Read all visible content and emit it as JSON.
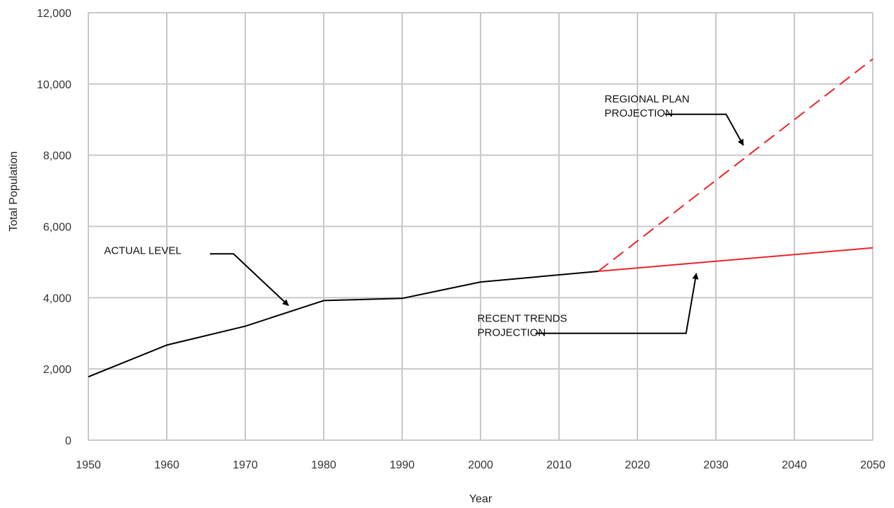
{
  "chart_data": {
    "type": "line",
    "title": "",
    "xlabel": "Year",
    "ylabel": "Total Population",
    "xlim": [
      1950,
      2050
    ],
    "ylim": [
      0,
      12000
    ],
    "x_ticks": [
      1950,
      1960,
      1970,
      1980,
      1990,
      2000,
      2010,
      2020,
      2030,
      2040,
      2050
    ],
    "x_tick_labels": [
      "1950",
      "1960",
      "1970",
      "1980",
      "1990",
      "2000",
      "2010",
      "2020",
      "2030",
      "2040",
      "2050"
    ],
    "y_ticks": [
      0,
      2000,
      4000,
      6000,
      8000,
      10000,
      12000
    ],
    "y_tick_labels": [
      "0",
      "2,000",
      "4,000",
      "6,000",
      "8,000",
      "10,000",
      "12,000"
    ],
    "grid": true,
    "series": [
      {
        "name": "ACTUAL LEVEL",
        "color": "#000000",
        "style": "solid",
        "points": [
          [
            1950,
            1780
          ],
          [
            1960,
            2670
          ],
          [
            1970,
            3200
          ],
          [
            1980,
            3920
          ],
          [
            1990,
            3980
          ],
          [
            2000,
            4440
          ],
          [
            2015,
            4740
          ]
        ]
      },
      {
        "name": "REGIONAL PLAN PROJECTION",
        "color": "#e8262a",
        "style": "dashed",
        "points": [
          [
            2015,
            4740
          ],
          [
            2050,
            10700
          ]
        ]
      },
      {
        "name": "RECENT TRENDS PROJECTION",
        "color": "#e8262a",
        "style": "solid",
        "points": [
          [
            2015,
            4740
          ],
          [
            2050,
            5400
          ]
        ]
      }
    ],
    "annotations": [
      {
        "id": "actual",
        "lines": [
          "ACTUAL LEVEL"
        ],
        "text_at": [
          1952,
          5230
        ],
        "path": [
          [
            1965.5,
            5230
          ],
          [
            1968.5,
            5230
          ],
          [
            1975.5,
            3780
          ]
        ]
      },
      {
        "id": "regional",
        "lines": [
          "REGIONAL PLAN",
          "PROJECTION"
        ],
        "text_at": [
          2015.8,
          9480
        ],
        "path": [
          [
            2023.5,
            9150
          ],
          [
            2031.3,
            9150
          ],
          [
            2033.5,
            8280
          ]
        ]
      },
      {
        "id": "trends",
        "lines": [
          "RECENT TRENDS",
          "PROJECTION"
        ],
        "text_at": [
          1999.6,
          3320
        ],
        "path": [
          [
            2007,
            3000
          ],
          [
            2026.2,
            3000
          ],
          [
            2027.5,
            4680
          ]
        ]
      }
    ]
  }
}
